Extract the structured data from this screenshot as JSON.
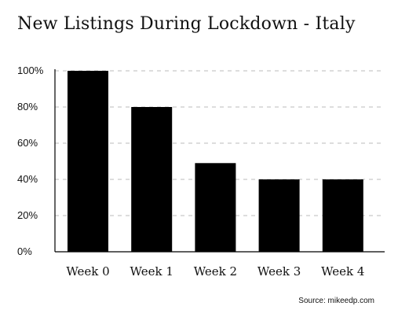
{
  "chart_data": {
    "type": "bar",
    "title": "New Listings During Lockdown - Italy",
    "categories": [
      "Week 0",
      "Week 1",
      "Week 2",
      "Week 3",
      "Week 4"
    ],
    "values": [
      100,
      80,
      49,
      40,
      40
    ],
    "ylim": [
      0,
      100
    ],
    "yticks": [
      "0%",
      "20%",
      "40%",
      "60%",
      "80%",
      "100%"
    ],
    "grid": "horizontal dashed",
    "source": "Source: mikeedp.com",
    "bar_color": "#000000",
    "grid_color": "#bbbbbb"
  }
}
